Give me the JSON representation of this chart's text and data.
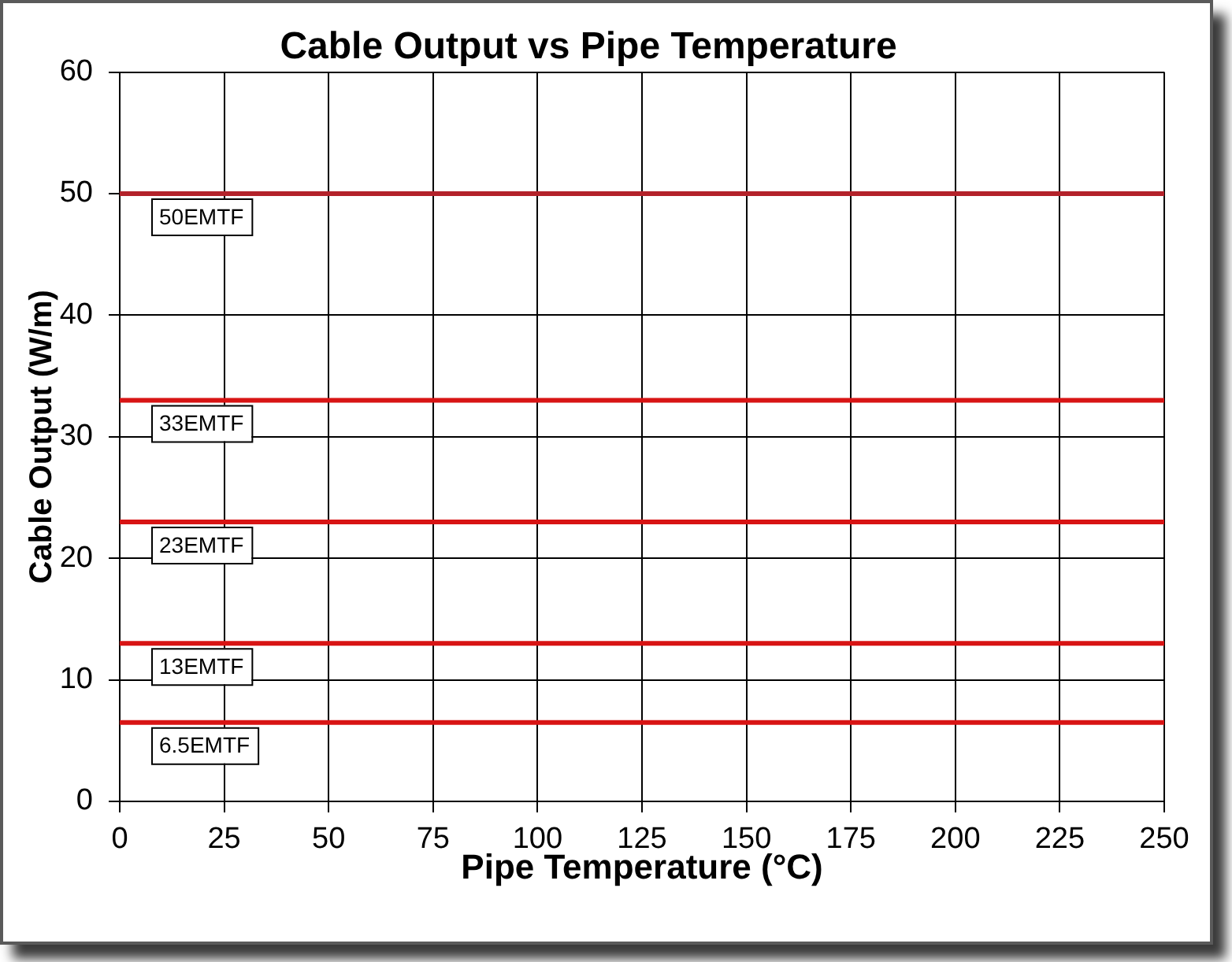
{
  "chart_data": {
    "type": "line",
    "title": "Cable Output vs Pipe Temperature",
    "xlabel": "Pipe Temperature (°C)",
    "ylabel": "Cable Output (W/m)",
    "x": [
      0,
      250
    ],
    "series": [
      {
        "name": "50EMTF",
        "color": "#b3222a",
        "values": [
          50,
          50
        ]
      },
      {
        "name": "33EMTF",
        "color": "#d81414",
        "values": [
          33,
          33
        ]
      },
      {
        "name": "23EMTF",
        "color": "#d81414",
        "values": [
          23,
          23
        ]
      },
      {
        "name": "13EMTF",
        "color": "#d81414",
        "values": [
          13,
          13
        ]
      },
      {
        "name": "6.5EMTF",
        "color": "#d81414",
        "values": [
          6.5,
          6.5
        ]
      }
    ],
    "xlim": [
      0,
      250
    ],
    "ylim": [
      0,
      60
    ],
    "xticks": [
      0,
      25,
      50,
      75,
      100,
      125,
      150,
      175,
      200,
      225,
      250
    ],
    "yticks": [
      0,
      10,
      20,
      30,
      40,
      50,
      60
    ],
    "grid": true,
    "legend": false,
    "marker": "none",
    "line_style": "solid"
  }
}
